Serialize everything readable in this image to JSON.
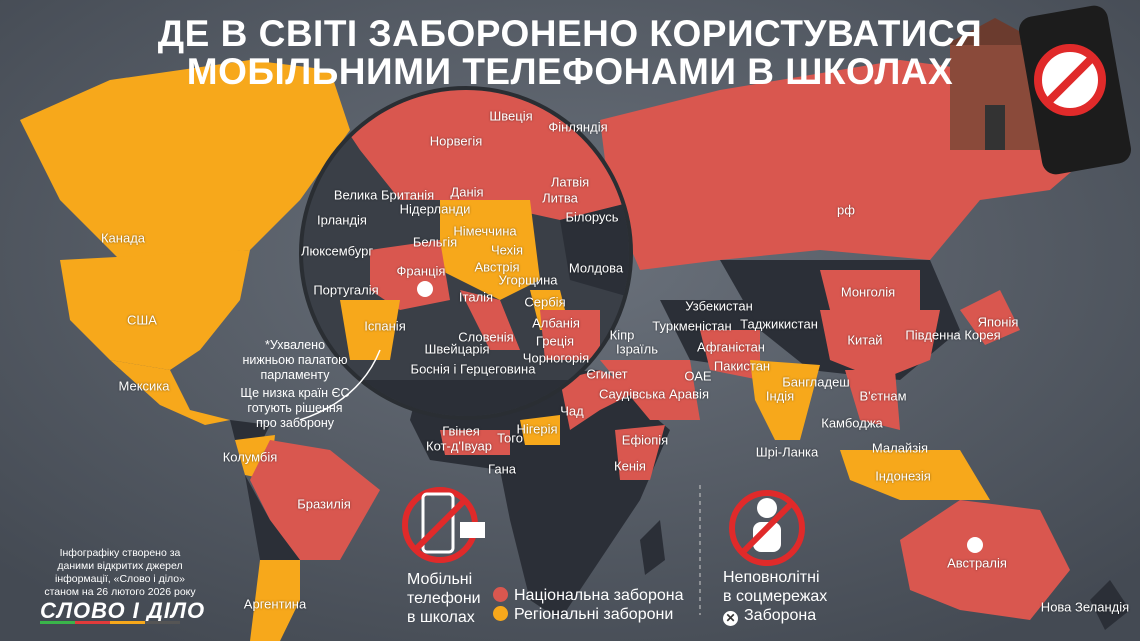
{
  "title": {
    "line1": "ДЕ В СВІТІ ЗАБОРОНЕНО КОРИСТУВАТИСЯ",
    "line2": "МОБІЛЬНИМИ ТЕЛЕФОНАМИ В ШКОЛАХ"
  },
  "colors": {
    "national": "#d9574f",
    "regional": "#f7a81b",
    "none": "#2b2f37",
    "background": "#555c66",
    "ban_icon": "#e02a2a"
  },
  "map": {
    "labels": [
      "Швеція",
      "Фінляндія",
      "Норвегія",
      "Велика Британія",
      "Данія",
      "Латвія",
      "Литва",
      "Нідерланди",
      "Ірландія",
      "Білорусь",
      "Німеччина",
      "Бельгія",
      "Люксембург",
      "Чехія",
      "Франція",
      "Австрія",
      "Молдова",
      "Угорщина",
      "Португалія",
      "Італія",
      "Сербія",
      "Іспанія",
      "Албанія",
      "Словенія",
      "Швейцарія",
      "Греція",
      "Чорногорія",
      "Боснія і Герцеговина",
      "Кіпр",
      "Ізраїль",
      "Єгипет",
      "Саудівська Аравія",
      "ОАЕ",
      "Узбекистан",
      "Туркменістан",
      "Таджикистан",
      "Афганістан",
      "Пакистан",
      "Бангладеш",
      "Індія",
      "В'єтнам",
      "Камбоджа",
      "Малайзія",
      "Індонезія",
      "Шрі-Ланка",
      "Китай",
      "Монголія",
      "Японія",
      "Південна Корея",
      "рф",
      "Канада",
      "США",
      "Мексика",
      "Колумбія",
      "Бразилія",
      "Аргентина",
      "Чад",
      "Нігерія",
      "Гвінея",
      "Кот-д'Івуар",
      "Того",
      "Гана",
      "Ефіопія",
      "Кенія",
      "Австралія",
      "Нова Зеландія"
    ]
  },
  "note": {
    "line1": "*Ухвалено",
    "line2": "нижньою палатою",
    "line3": "парламенту",
    "line4": "Ще низка країн ЄС",
    "line5": "готують рішення",
    "line6": "про заборону"
  },
  "legend": {
    "phones_l1": "Мобільні",
    "phones_l2": "телефони",
    "phones_l3": "в школах",
    "national": "Національна заборона",
    "regional": "Регіональні заборони",
    "minors_l1": "Неповнолітні",
    "minors_l2": "в соцмережах",
    "ban": "Заборона"
  },
  "credit": {
    "l1": "Інфографіку створено за",
    "l2": "даними відкритих джерел",
    "l3": "інформації, «Слово і діло»",
    "l4": "станом на 26 лютого 2026 року"
  },
  "logo": "СЛОВО І ДІЛО"
}
